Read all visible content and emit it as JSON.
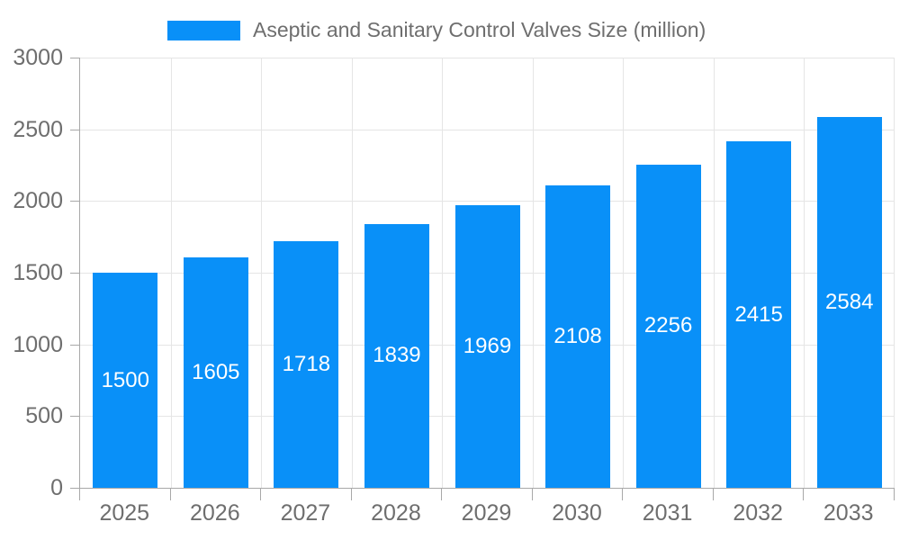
{
  "chart_data": {
    "type": "bar",
    "title": "Aseptic and Sanitary Control Valves Size (million)",
    "categories": [
      "2025",
      "2026",
      "2027",
      "2028",
      "2029",
      "2030",
      "2031",
      "2032",
      "2033"
    ],
    "values": [
      1500,
      1605,
      1718,
      1839,
      1969,
      2108,
      2256,
      2415,
      2584
    ],
    "xlabel": "",
    "ylabel": "",
    "ylim": [
      0,
      3000
    ],
    "ytick_step": 500,
    "yticks": [
      0,
      500,
      1000,
      1500,
      2000,
      2500,
      3000
    ],
    "grid": true,
    "legend_position": "top",
    "value_labels": "inside-center",
    "colors": {
      "bar": "#0990f8",
      "value_label": "#ffffff",
      "axis_label": "#6e6e6e",
      "grid_line": "#e5e5e5",
      "axis_line": "#a8a8a8"
    }
  },
  "legend": {
    "label": "Aseptic and Sanitary Control Valves Size (million)"
  }
}
